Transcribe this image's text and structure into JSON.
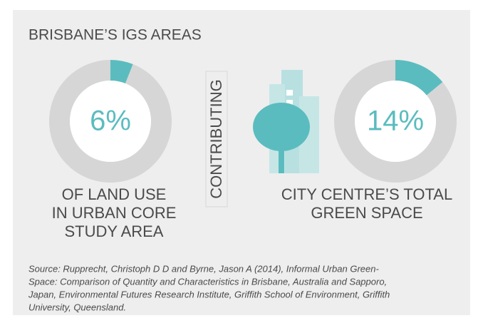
{
  "title": "BRISBANE’S IGS AREAS",
  "connector": "CONTRIBUTING",
  "source": [
    "Source: Rupprecht, Christoph D D and Byrne, Jason A (2014), Informal Urban Green-",
    "Space: Comparison of Quantity and Characteristics in Brisbane, Australia and Sapporo,",
    "Japan, Environmental Futures Research Institute, Griffith School of Environment, Griffith",
    "University, Queensland."
  ],
  "chart_data": [
    {
      "type": "donut",
      "values": [
        6,
        94
      ],
      "value_labels": [
        "6%",
        null
      ],
      "colors": [
        "#5bbcbf",
        "#d6d6d6"
      ],
      "caption": [
        "OF LAND USE",
        "IN URBAN CORE",
        "STUDY AREA"
      ]
    },
    {
      "type": "donut",
      "values": [
        14,
        86
      ],
      "value_labels": [
        "14%",
        null
      ],
      "colors": [
        "#5bbcbf",
        "#d6d6d6"
      ],
      "caption": [
        "CITY CENTRE’S TOTAL",
        "GREEN SPACE"
      ]
    }
  ]
}
